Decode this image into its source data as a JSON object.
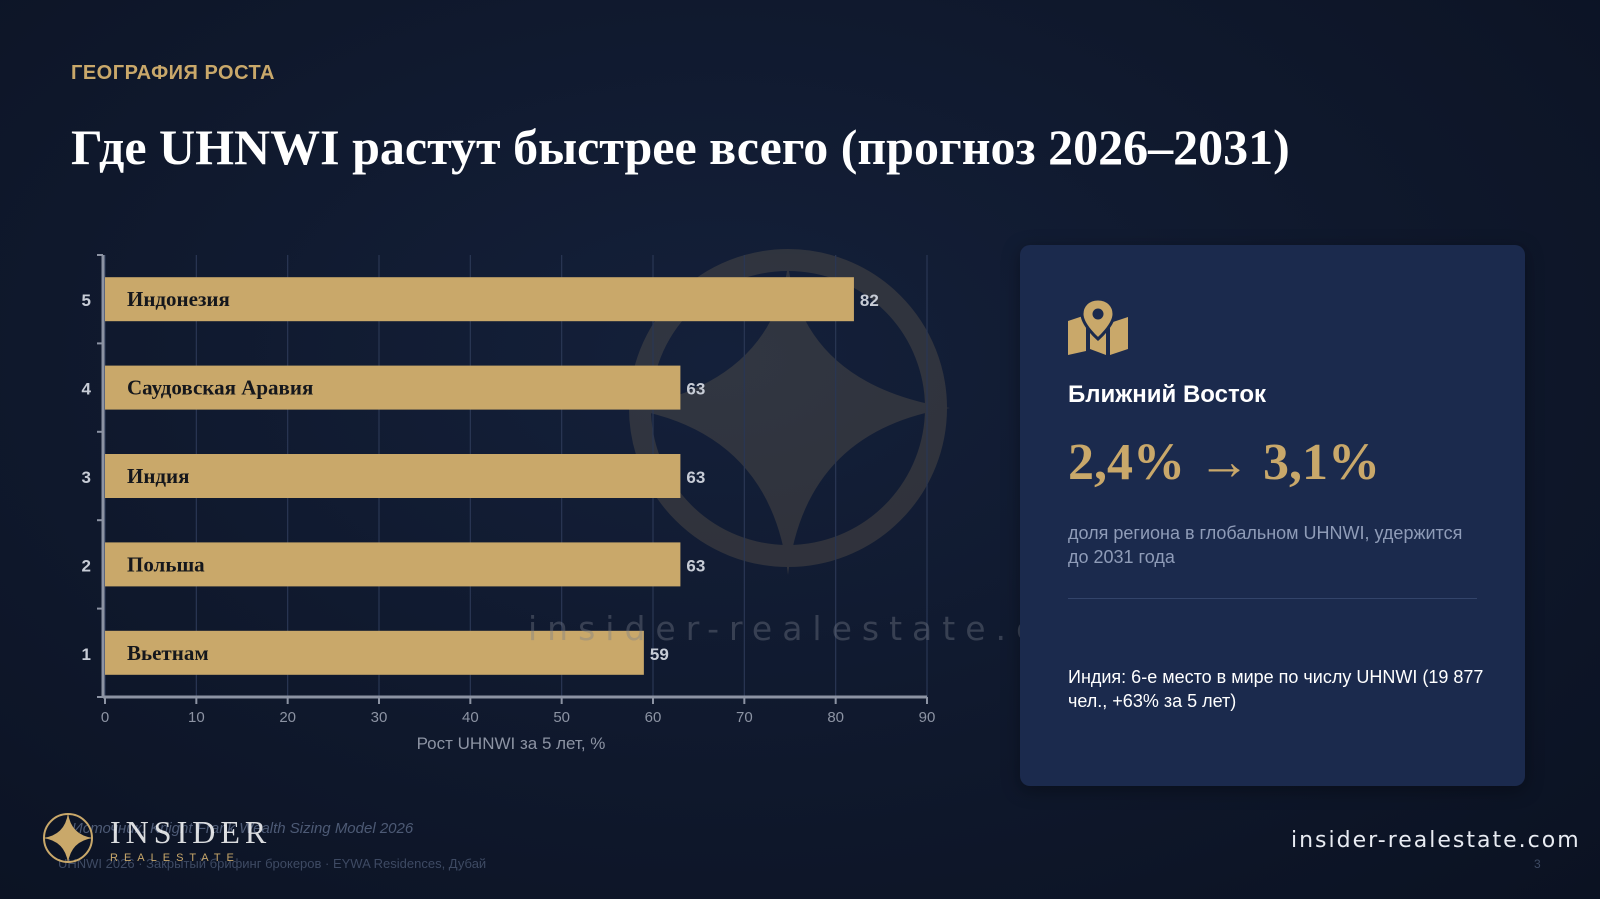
{
  "header": {
    "kicker": "ГЕОГРАФИЯ РОСТА",
    "title": "Где UHNWI растут быстрее всего (прогноз 2026–2031)"
  },
  "chart_data": {
    "type": "bar",
    "orientation": "horizontal",
    "categories": [
      "Индонезия",
      "Саудовская Аравия",
      "Индия",
      "Польша",
      "Вьетнам"
    ],
    "ranks": [
      5,
      4,
      3,
      2,
      1
    ],
    "values": [
      82,
      63,
      63,
      63,
      59
    ],
    "xlabel": "Рост UHNWI за 5 лет, %",
    "ylabel": "",
    "xlim": [
      0,
      90
    ],
    "xticks": [
      0,
      10,
      20,
      30,
      40,
      50,
      60,
      70,
      80,
      90
    ],
    "grid": true,
    "bar_color": "#c9a86a"
  },
  "card": {
    "icon": "map-pin-icon",
    "region": "Ближний Восток",
    "metric": "2,4% → 3,1%",
    "metric_desc": "доля региона в глобальном UHNWI, удержится до 2031 года",
    "note": "Индия: 6-е место в мире по числу UHNWI (19 877 чел., +63% за 5 лет)"
  },
  "watermark": "insider-realestate.com",
  "source": "Источник: Knight Frank Wealth Sizing Model 2026",
  "footer": {
    "text": "UHNWI 2026 · Закрытый брифинг брокеров · EYWA Residences, Дубай",
    "page": "3"
  },
  "logo": {
    "name": "INSIDER",
    "sub": "REALESTATE"
  },
  "site": "insider-realestate.com",
  "colors": {
    "accent": "#c9a86a",
    "background": "#0f182c",
    "card": "#1b2a4d"
  }
}
